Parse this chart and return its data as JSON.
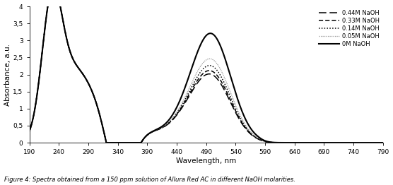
{
  "xlabel": "Wavelength, nm",
  "ylabel": "Absorbance, a.u.",
  "xlim": [
    190,
    790
  ],
  "ylim": [
    0,
    4
  ],
  "xticks": [
    190,
    240,
    290,
    340,
    390,
    440,
    490,
    540,
    590,
    640,
    690,
    740,
    790
  ],
  "yticks": [
    0,
    0.5,
    1,
    1.5,
    2,
    2.5,
    3,
    3.5,
    4
  ],
  "ytick_labels": [
    "0",
    "0,5",
    "1",
    "1,5",
    "2",
    "2,5",
    "3",
    "3,5",
    "4"
  ],
  "caption": "Figure 4: Spectra obtained from a 150 ppm solution of Allura Red AC in different NaOH molarities.",
  "background_color": "#ffffff",
  "series": [
    {
      "label": "0.44M NaOH",
      "color": "#000000",
      "ls_type": "longdash",
      "lw": 1.1,
      "vis_peak": 1.75,
      "min_val": 1.12,
      "bump": 1.12
    },
    {
      "label": "0.33M NaOH",
      "color": "#000000",
      "ls_type": "middash",
      "lw": 1.1,
      "vis_peak": 1.85,
      "min_val": 1.05,
      "bump": 1.1
    },
    {
      "label": "0.14M NaOH",
      "color": "#000000",
      "ls_type": "densedot",
      "lw": 1.1,
      "vis_peak": 2.0,
      "min_val": 0.92,
      "bump": 1.08
    },
    {
      "label": "0.05M NaOH",
      "color": "#999999",
      "ls_type": "dot",
      "lw": 0.9,
      "vis_peak": 2.2,
      "min_val": 0.8,
      "bump": 1.05
    },
    {
      "label": "0M NaOH",
      "color": "#000000",
      "ls_type": "solid",
      "lw": 1.5,
      "vis_peak": 2.95,
      "min_val": 0.6,
      "bump": 1.0
    }
  ]
}
